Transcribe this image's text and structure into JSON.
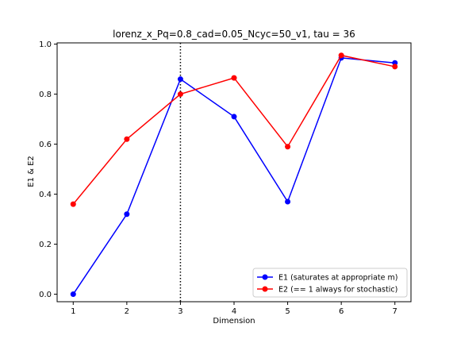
{
  "chart_data": {
    "type": "line",
    "title": "lorenz_x_Pq=0.8_cad=0.05_Ncyc=50_v1, tau = 36",
    "xlabel": "Dimension",
    "ylabel": "E1 & E2",
    "x": [
      1,
      2,
      3,
      4,
      5,
      6,
      7
    ],
    "xlim": [
      0.7,
      7.3
    ],
    "ylim": [
      -0.03,
      1.005
    ],
    "xticks": [
      "1",
      "2",
      "3",
      "4",
      "5",
      "6",
      "7"
    ],
    "yticks": [
      "0.0",
      "0.2",
      "0.4",
      "0.6",
      "0.8",
      "1.0"
    ],
    "grid": false,
    "legend_position": "lower-right",
    "vline": {
      "x": 3,
      "style": "dotted",
      "color": "#000000"
    },
    "series": [
      {
        "name": "E1 (saturates at appropriate m)",
        "color": "#0000ff",
        "values": [
          0.0,
          0.32,
          0.86,
          0.71,
          0.37,
          0.945,
          0.925
        ]
      },
      {
        "name": "E2 (== 1 always for stochastic)",
        "color": "#ff0000",
        "values": [
          0.36,
          0.62,
          0.8,
          0.865,
          0.59,
          0.955,
          0.91
        ]
      }
    ]
  }
}
